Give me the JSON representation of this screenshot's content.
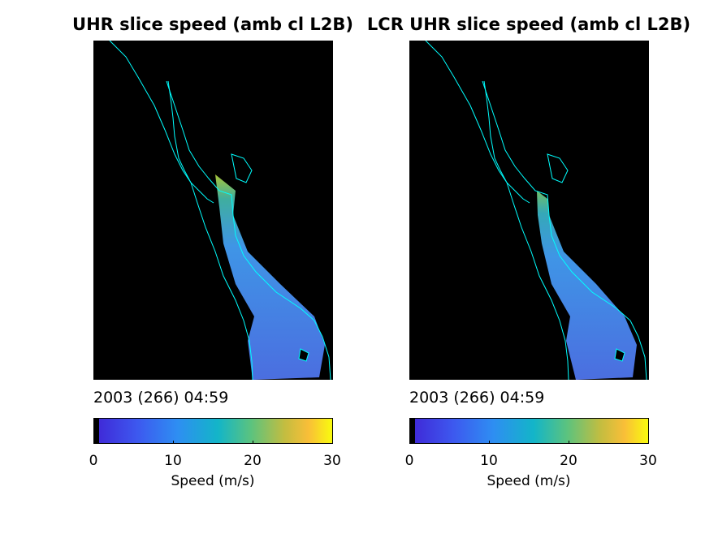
{
  "chart_data": [
    {
      "type": "heatmap",
      "title": "UHR slice speed (amb cl L2B)",
      "annotation": "2003 (266) 04:59",
      "colorbar": {
        "label": "Speed (m/s)",
        "range": [
          0,
          30
        ],
        "ticks": [
          0,
          10,
          20,
          30
        ],
        "colormap": "parula"
      },
      "background_color": "#000000",
      "coastline_color": "#00ffff",
      "wind_speed_values": {
        "typical": 9,
        "max": 24
      }
    },
    {
      "type": "heatmap",
      "title": "LCR UHR slice speed (amb cl L2B)",
      "annotation": "2003 (266) 04:59",
      "colorbar": {
        "label": "Speed (m/s)",
        "range": [
          0,
          30
        ],
        "ticks": [
          0,
          10,
          20,
          30
        ],
        "colormap": "parula"
      },
      "background_color": "#000000",
      "coastline_color": "#00ffff",
      "wind_speed_values": {
        "typical": 9,
        "max": 20
      }
    }
  ]
}
